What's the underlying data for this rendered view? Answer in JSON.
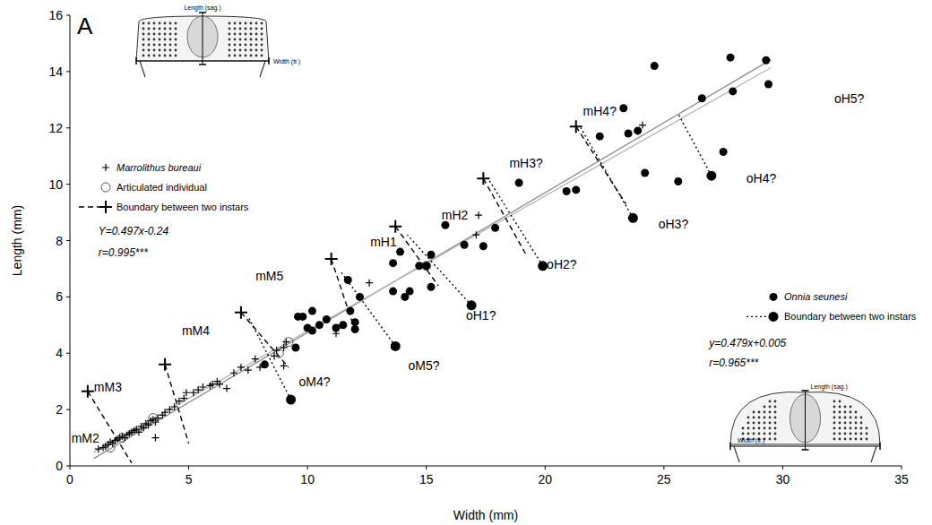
{
  "chart_data": {
    "type": "scatter",
    "panel": "A",
    "xlabel": "Width (mm)",
    "ylabel": "Length (mm)",
    "xlim": [
      0,
      35
    ],
    "ylim": [
      0,
      16
    ],
    "xticks": [
      0,
      5,
      10,
      15,
      20,
      25,
      30,
      35
    ],
    "yticks": [
      0,
      2,
      4,
      6,
      8,
      10,
      12,
      14,
      16
    ],
    "grid": false,
    "legend": "upper left",
    "series": [
      {
        "name": "Marrolithus bureaui",
        "type": "scatter",
        "marker": "plus",
        "color": "#000000",
        "x": [
          1.2,
          1.4,
          1.5,
          1.6,
          1.7,
          1.8,
          1.9,
          2.0,
          2.1,
          2.2,
          2.3,
          2.4,
          2.5,
          2.6,
          2.7,
          2.8,
          2.9,
          3.0,
          3.1,
          3.2,
          3.3,
          3.4,
          3.5,
          3.6,
          3.7,
          3.6,
          3.9,
          4.0,
          4.2,
          4.4,
          4.6,
          4.8,
          4.9,
          5.2,
          5.4,
          5.6,
          5.9,
          6.0,
          6.2,
          6.3,
          6.6,
          6.9,
          7.2,
          7.5,
          7.8,
          8.0,
          8.6,
          8.7,
          9.0,
          9.1,
          9.0,
          11.2,
          11.4,
          12.6,
          17.1,
          17.2,
          24.1
        ],
        "values": [
          0.6,
          0.65,
          0.7,
          0.75,
          0.85,
          0.8,
          0.9,
          0.95,
          1.0,
          1.05,
          1.0,
          1.1,
          1.15,
          1.2,
          1.25,
          1.3,
          1.2,
          1.4,
          1.35,
          1.5,
          1.45,
          1.6,
          1.65,
          1.55,
          1.7,
          1.0,
          1.8,
          1.9,
          2.0,
          2.1,
          2.3,
          2.4,
          2.6,
          2.6,
          2.7,
          2.8,
          2.85,
          2.9,
          3.0,
          2.9,
          2.75,
          3.3,
          3.5,
          3.4,
          3.8,
          3.5,
          3.9,
          4.1,
          3.55,
          4.4,
          4.2,
          4.7,
          5.0,
          6.5,
          8.2,
          8.9,
          12.1
        ]
      },
      {
        "name": "Articulated individual",
        "type": "scatter",
        "marker": "circle",
        "color": "#555555",
        "x": [
          1.7,
          2.2,
          3.5,
          8.8,
          9.2,
          15.0
        ],
        "values": [
          0.65,
          1.0,
          1.7,
          4.0,
          4.4,
          7.1
        ]
      },
      {
        "name": "Boundary between two instars",
        "type": "line",
        "line_style": "dashed",
        "marker": "plus",
        "color": "#000000",
        "x": [
          0.75,
          2.6,
          null,
          4.0,
          5.0,
          null,
          7.2,
          9.2,
          null,
          11.0,
          12.0,
          null,
          13.7,
          15.5,
          null,
          17.4,
          19.2,
          null,
          21.3,
          23.4
        ],
        "values": [
          2.65,
          0.1,
          null,
          3.6,
          0.8,
          null,
          5.45,
          3.5,
          null,
          7.35,
          4.8,
          null,
          8.5,
          6.4,
          null,
          10.2,
          7.5,
          null,
          12.05,
          9.3
        ]
      },
      {
        "name": "Onnia seunesi",
        "type": "scatter",
        "marker": "dot",
        "color": "#000000",
        "x": [
          9.3,
          8.2,
          9.5,
          9.6,
          9.8,
          10.2,
          10.0,
          10.5,
          10.8,
          10.2,
          11.2,
          11.5,
          11.8,
          12.0,
          11.7,
          12.2,
          12.0,
          13.6,
          13.9,
          14.3,
          13.6,
          13.7,
          14.1,
          14.7,
          15.0,
          15.2,
          15.2,
          15.8,
          16.6,
          16.9,
          17.9,
          17.4,
          18.9,
          19.9,
          20.9,
          21.3,
          22.3,
          23.3,
          23.5,
          23.7,
          23.9,
          24.2,
          24.6,
          25.6,
          26.6,
          27.0,
          27.5,
          27.8,
          27.9,
          29.3,
          29.4
        ],
        "values": [
          2.35,
          3.6,
          4.2,
          5.3,
          5.3,
          5.5,
          4.9,
          5.0,
          5.2,
          4.8,
          4.9,
          5.0,
          5.5,
          5.1,
          6.6,
          6.0,
          4.85,
          7.2,
          7.6,
          6.2,
          6.2,
          4.25,
          6.0,
          7.1,
          7.1,
          7.5,
          6.35,
          8.55,
          7.85,
          5.7,
          8.45,
          7.8,
          10.05,
          7.1,
          9.75,
          9.8,
          11.7,
          12.7,
          11.8,
          8.8,
          11.9,
          10.4,
          14.2,
          10.1,
          13.05,
          10.3,
          11.15,
          14.5,
          13.3,
          14.4,
          13.55
        ]
      },
      {
        "name": "Boundary between two instars",
        "type": "line",
        "line_style": "dotted",
        "marker": "dot",
        "color": "#000000",
        "x": [
          9.3,
          7.5,
          null,
          13.7,
          11.4,
          null,
          16.9,
          14.2,
          null,
          19.9,
          17.6,
          null,
          23.7,
          21.5,
          null,
          27.0,
          25.6
        ],
        "values": [
          2.35,
          5.3,
          null,
          4.25,
          6.9,
          null,
          5.7,
          8.2,
          null,
          7.1,
          10.2,
          null,
          8.8,
          12.0,
          null,
          10.3,
          12.5
        ]
      },
      {
        "type": "line",
        "line_style": "solid",
        "color": "#8c8c8c",
        "x": [
          1.0,
          29.5
        ],
        "values": [
          0.26,
          14.42
        ]
      },
      {
        "type": "line",
        "line_style": "solid",
        "color": "#b4b4b4",
        "x": [
          1.0,
          29.5
        ],
        "values": [
          0.48,
          14.14
        ]
      }
    ],
    "annotations": [
      {
        "text": "mM2",
        "x": 0.65,
        "y": 1.0
      },
      {
        "text": "mM3",
        "x": 1.6,
        "y": 2.8
      },
      {
        "text": "mM4",
        "x": 5.3,
        "y": 4.8
      },
      {
        "text": "mM5",
        "x": 8.4,
        "y": 6.75
      },
      {
        "text": "mH1",
        "x": 13.2,
        "y": 7.95
      },
      {
        "text": "mH2",
        "x": 16.2,
        "y": 8.9
      },
      {
        "text": "mH3?",
        "x": 19.2,
        "y": 10.75
      },
      {
        "text": "mH4?",
        "x": 22.3,
        "y": 12.6
      },
      {
        "text": "oM4?",
        "x": 10.3,
        "y": 3.0
      },
      {
        "text": "oM5?",
        "x": 14.9,
        "y": 3.55
      },
      {
        "text": "oH1?",
        "x": 17.3,
        "y": 5.35
      },
      {
        "text": "oH2?",
        "x": 20.7,
        "y": 7.15
      },
      {
        "text": "oH3?",
        "x": 25.4,
        "y": 8.6
      },
      {
        "text": "oH4?",
        "x": 29.1,
        "y": 10.2
      },
      {
        "text": "oH5?",
        "x": 32.8,
        "y": 13.05
      },
      {
        "text": "Y=0.497x-0.24",
        "x": 1.2,
        "y": 8.35
      },
      {
        "text": "r=0.995***",
        "x": 1.2,
        "y": 7.6
      },
      {
        "text": "y=0.479x+0.005",
        "x": 26.9,
        "y": 4.4
      },
      {
        "text": "r=0.965***",
        "x": 26.9,
        "y": 3.7
      }
    ],
    "insets": [
      {
        "length_label": "Length (sag.)",
        "width_label": "Width (tr.)"
      },
      {
        "length_label": "Length (sag.)",
        "width_label": "Width (tr.)"
      }
    ]
  }
}
